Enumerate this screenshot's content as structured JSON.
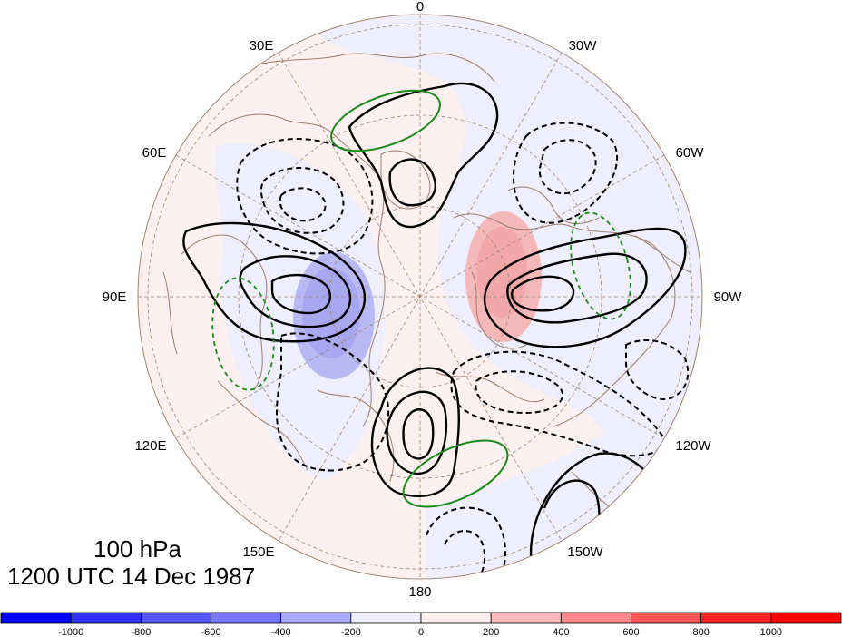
{
  "map": {
    "title_level": "100 hPa",
    "title_time": "1200 UTC 14 Dec 1987",
    "longitude_labels": [
      "0",
      "30W",
      "60W",
      "90W",
      "120W",
      "150W",
      "180",
      "150E",
      "120E",
      "90E",
      "60E",
      "30E"
    ],
    "colors": {
      "land_outline": "#9b7e6b",
      "contour_black": "#000000",
      "contour_green": "#1a8a1a",
      "grid": "#a08670"
    }
  },
  "colorbar": {
    "tick_labels": [
      "-1000",
      "-800",
      "-600",
      "-400",
      "-200",
      "0",
      "200",
      "400",
      "600",
      "800",
      "1000"
    ],
    "colors": [
      "#0000ff",
      "#3333ff",
      "#5555ff",
      "#7777ff",
      "#aaaaff",
      "#eeeeff",
      "#ffeeee",
      "#ffbbbb",
      "#ff8888",
      "#ff5555",
      "#ff2222",
      "#ff0000"
    ]
  }
}
